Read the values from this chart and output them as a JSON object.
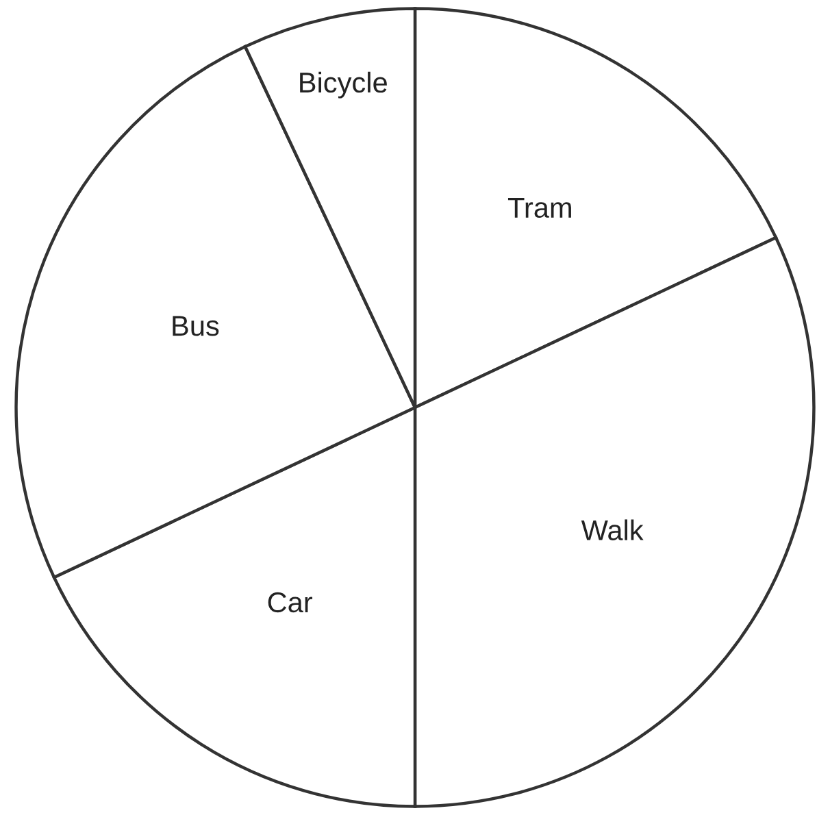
{
  "chart_data": {
    "type": "pie",
    "categories": [
      "Tram",
      "Walk",
      "Car",
      "Bus",
      "Bicycle"
    ],
    "values": [
      18,
      32,
      18,
      25,
      7
    ],
    "colors": [
      "#ffffff",
      "#ffffff",
      "#ffffff",
      "#ffffff",
      "#ffffff"
    ]
  }
}
